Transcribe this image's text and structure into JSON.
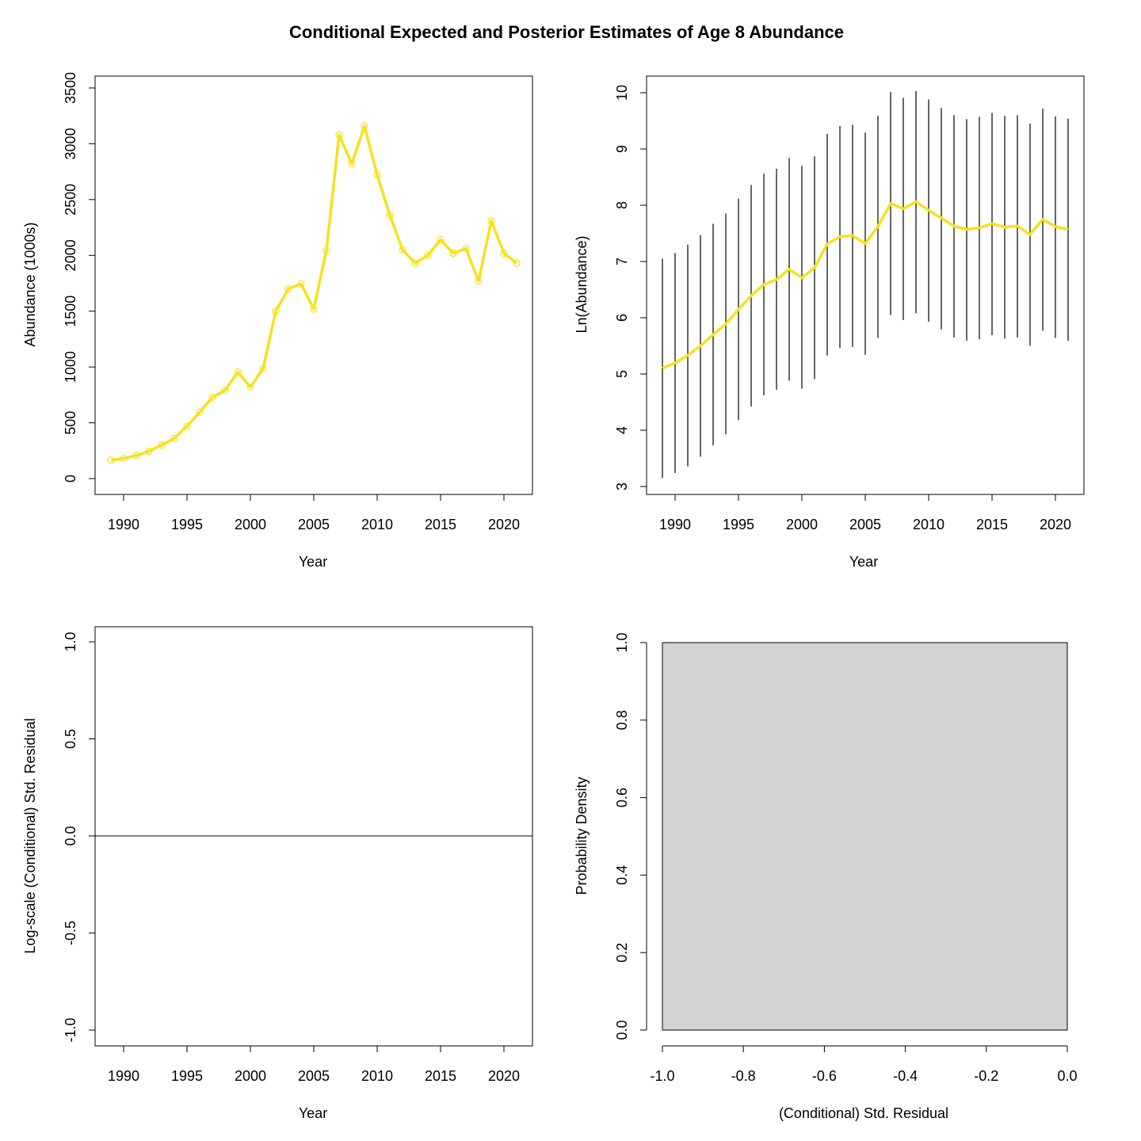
{
  "title": "Conditional Expected and Posterior Estimates of Age 8 Abundance",
  "colors": {
    "line": "#F5E21D",
    "whisker": "#000000",
    "bar": "#D3D3D3"
  },
  "chart_data": [
    {
      "type": "line",
      "xlabel": "Year",
      "ylabel": "Abundance (1000s)",
      "xlim": [
        1989,
        2021
      ],
      "ylim": [
        0,
        3500
      ],
      "xticks": [
        "1990",
        "1995",
        "2000",
        "2005",
        "2010",
        "2015",
        "2020"
      ],
      "yticks": [
        "0",
        "500",
        "1000",
        "1500",
        "2000",
        "2500",
        "3000",
        "3500"
      ],
      "series": [
        {
          "x": [
            1989,
            1990,
            1991,
            1992,
            1993,
            1994,
            1995,
            1996,
            1997,
            1998,
            1999,
            2000,
            2001,
            2002,
            2003,
            2004,
            2005,
            2006,
            2007,
            2008,
            2009,
            2010,
            2011,
            2012,
            2013,
            2014,
            2015,
            2016,
            2017,
            2018,
            2019,
            2020,
            2021
          ],
          "values": [
            165,
            180,
            205,
            245,
            300,
            360,
            470,
            595,
            730,
            790,
            955,
            820,
            985,
            1500,
            1700,
            1745,
            1520,
            2045,
            3080,
            2820,
            3160,
            2720,
            2360,
            2050,
            1930,
            2000,
            2140,
            2020,
            2060,
            1770,
            2310,
            2020,
            1930
          ]
        }
      ]
    },
    {
      "type": "line",
      "xlabel": "Year",
      "ylabel": "Ln(Abundance)",
      "xlim": [
        1989,
        2021
      ],
      "ylim": [
        3,
        10
      ],
      "xticks": [
        "1990",
        "1995",
        "2000",
        "2005",
        "2010",
        "2015",
        "2020"
      ],
      "yticks": [
        "3",
        "4",
        "5",
        "6",
        "7",
        "8",
        "9",
        "10"
      ],
      "series": [
        {
          "x": [
            1989,
            1990,
            1991,
            1992,
            1993,
            1994,
            1995,
            1996,
            1997,
            1998,
            1999,
            2000,
            2001,
            2002,
            2003,
            2004,
            2005,
            2006,
            2007,
            2008,
            2009,
            2010,
            2011,
            2012,
            2013,
            2014,
            2015,
            2016,
            2017,
            2018,
            2019,
            2020,
            2021
          ],
          "values": [
            5.1,
            5.2,
            5.33,
            5.5,
            5.7,
            5.89,
            6.15,
            6.39,
            6.59,
            6.68,
            6.86,
            6.71,
            6.89,
            7.31,
            7.44,
            7.46,
            7.32,
            7.62,
            8.03,
            7.94,
            8.06,
            7.91,
            7.77,
            7.63,
            7.57,
            7.6,
            7.67,
            7.61,
            7.63,
            7.48,
            7.75,
            7.62,
            7.57
          ],
          "lower": [
            3.15,
            3.24,
            3.36,
            3.53,
            3.73,
            3.93,
            4.18,
            4.42,
            4.62,
            4.72,
            4.88,
            4.74,
            4.91,
            5.33,
            5.46,
            5.48,
            5.34,
            5.64,
            6.05,
            5.96,
            6.08,
            5.93,
            5.79,
            5.65,
            5.59,
            5.62,
            5.69,
            5.63,
            5.65,
            5.5,
            5.77,
            5.64,
            5.59
          ],
          "upper": [
            7.05,
            7.15,
            7.3,
            7.47,
            7.67,
            7.85,
            8.12,
            8.36,
            8.56,
            8.65,
            8.84,
            8.7,
            8.87,
            9.27,
            9.41,
            9.43,
            9.29,
            9.59,
            10.01,
            9.91,
            10.03,
            9.88,
            9.73,
            9.6,
            9.53,
            9.57,
            9.64,
            9.59,
            9.6,
            9.45,
            9.72,
            9.58,
            9.54
          ]
        }
      ]
    },
    {
      "type": "scatter",
      "xlabel": "Year",
      "ylabel": "Log-scale (Conditional) Std. Residual",
      "xlim": [
        1989,
        2021
      ],
      "ylim": [
        -1,
        1
      ],
      "xticks": [
        "1990",
        "1995",
        "2000",
        "2005",
        "2010",
        "2015",
        "2020"
      ],
      "yticks": [
        "-1.0",
        "-0.5",
        "0.0",
        "0.5",
        "1.0"
      ],
      "reference_line": 0,
      "series": []
    },
    {
      "type": "bar",
      "xlabel": "(Conditional) Std. Residual",
      "ylabel": "Probability Density",
      "xlim": [
        -1,
        0
      ],
      "ylim": [
        0,
        1
      ],
      "xticks": [
        "-1.0",
        "-0.8",
        "-0.6",
        "-0.4",
        "-0.2",
        "0.0"
      ],
      "yticks": [
        "0.0",
        "0.2",
        "0.4",
        "0.6",
        "0.8",
        "1.0"
      ],
      "bins": [
        {
          "from": -1,
          "to": 0,
          "density": 1
        }
      ]
    }
  ]
}
